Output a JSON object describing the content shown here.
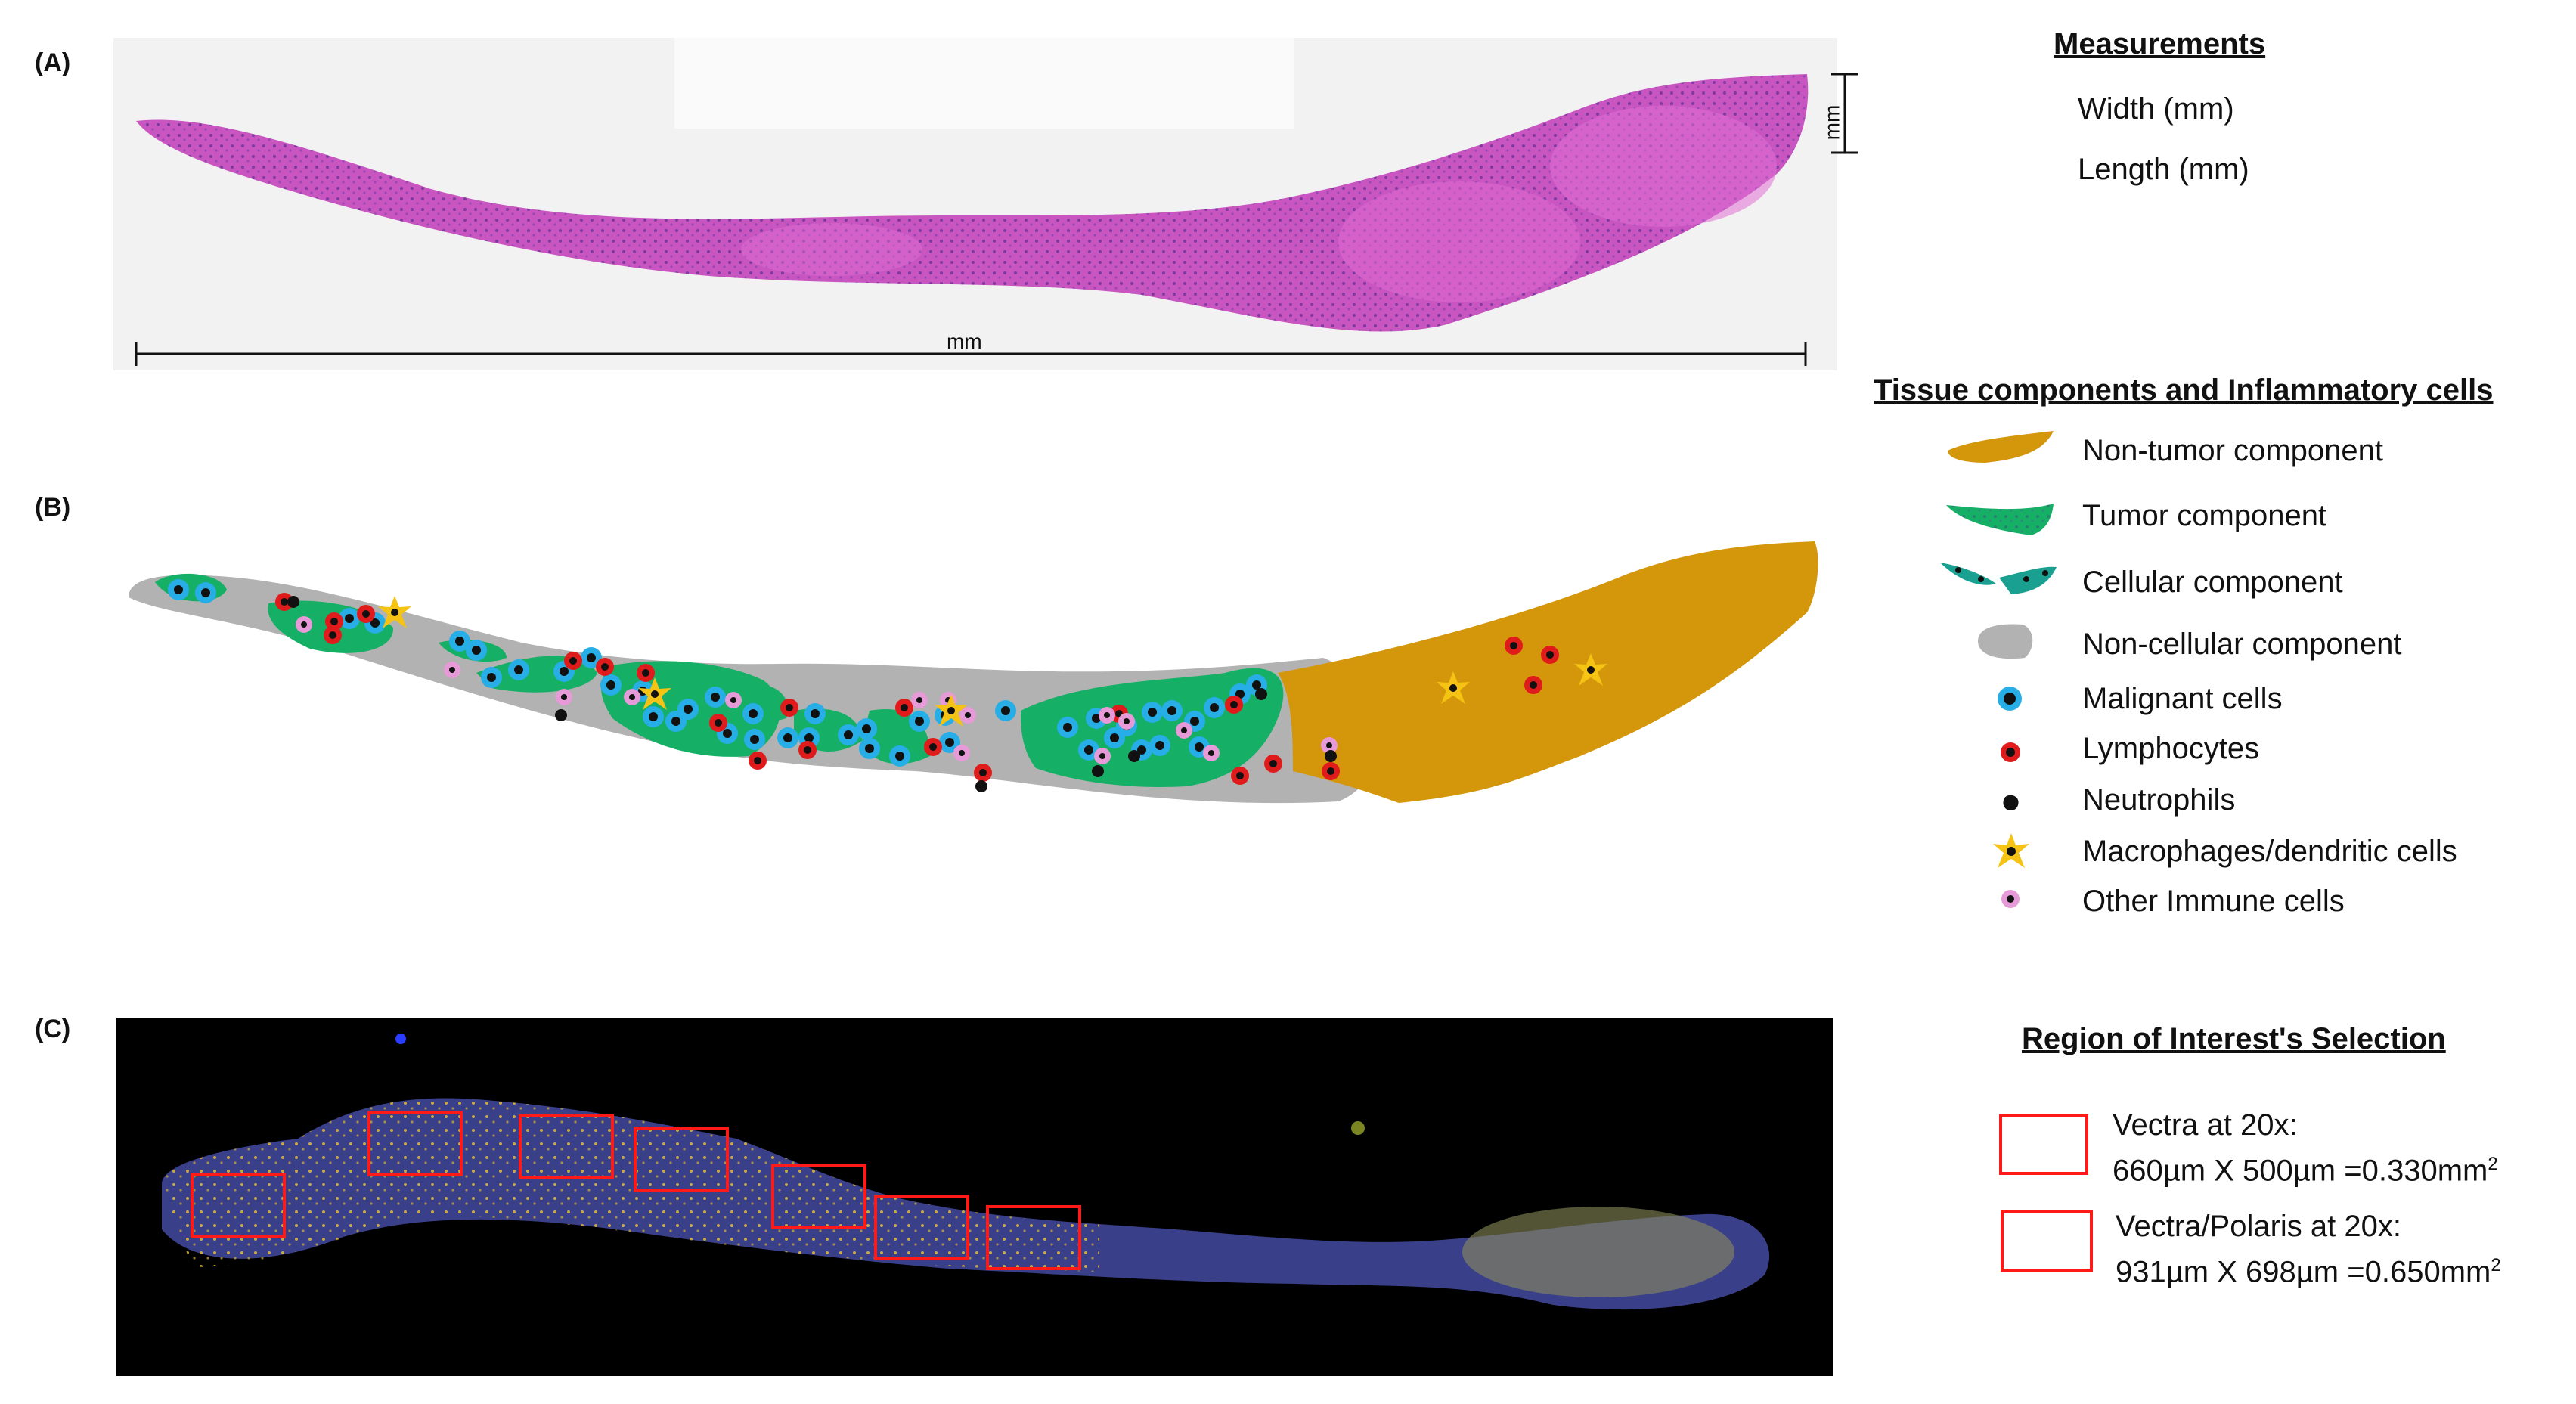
{
  "panels": {
    "a": {
      "label": "(A)",
      "length_label": "mm",
      "width_label": "mm"
    },
    "b": {
      "label": "(B)"
    },
    "c": {
      "label": "(C)"
    }
  },
  "measurements": {
    "heading": "Measurements",
    "items": [
      "Width (mm)",
      "Length  (mm)"
    ]
  },
  "tissue_legend": {
    "heading": "Tissue components and Inflammatory  cells",
    "items": [
      {
        "label": "Non-tumor component",
        "icon": "non-tumor-swatch"
      },
      {
        "label": "Tumor component",
        "icon": "tumor-swatch"
      },
      {
        "label": "Cellular component",
        "icon": "cellular-swatch"
      },
      {
        "label": "Non-cellular component",
        "icon": "non-cellular-swatch"
      },
      {
        "label": "Malignant cells",
        "icon": "malignant-cell-icon"
      },
      {
        "label": "Lymphocytes",
        "icon": "lymphocyte-icon"
      },
      {
        "label": "Neutrophils",
        "icon": "neutrophil-icon"
      },
      {
        "label": "Macrophages/dendritic cells",
        "icon": "macrophage-icon"
      },
      {
        "label": "Other Immune cells",
        "icon": "other-immune-cell-icon"
      }
    ]
  },
  "roi_legend": {
    "heading": "Region of Interest's Selection",
    "items": [
      {
        "line1": "Vectra at 20x:",
        "line2": " 660µm X 500µm =0.330mm",
        "sup": "2"
      },
      {
        "line1": "Vectra/Polaris at 20x:",
        "line2": " 931µm X 698µm =0.650mm",
        "sup": "2"
      }
    ]
  },
  "colors": {
    "non_tumor": "#d4960a",
    "tumor": "#15b066",
    "non_cellular": "#b3b2b2",
    "malignant_ring": "#27aee6",
    "lymphocyte_ring": "#e01b1b",
    "macrophage": "#f5c313",
    "other_immune": "#e79ad8",
    "roi_box": "#ff1a1a",
    "he_stain": "#c64bb6"
  }
}
